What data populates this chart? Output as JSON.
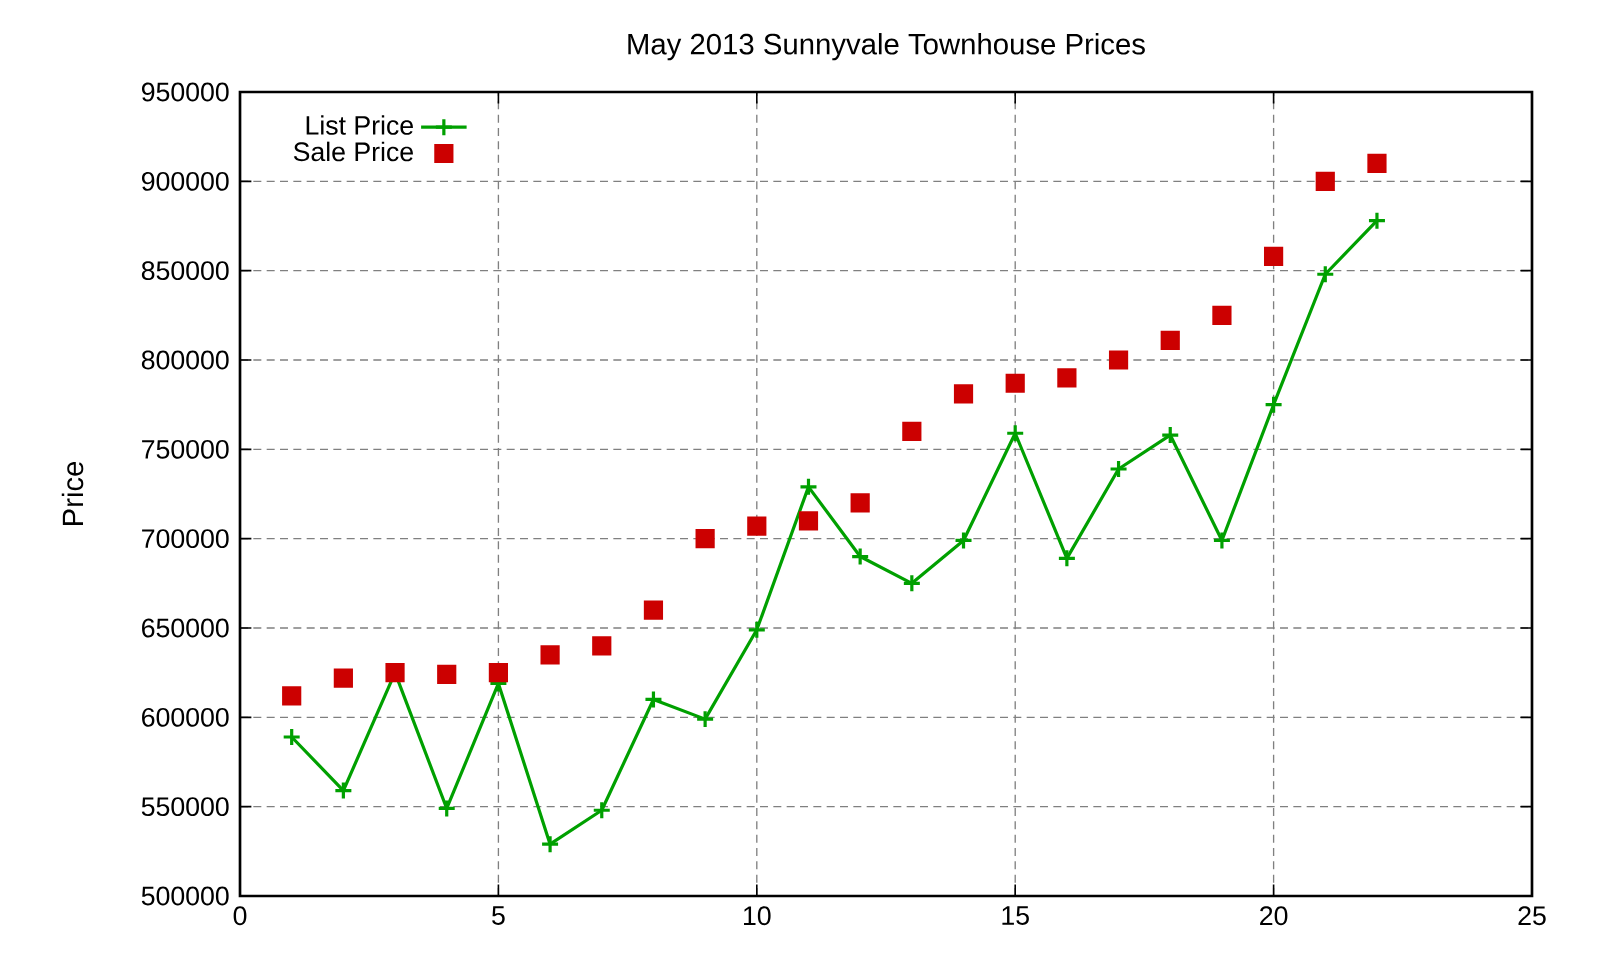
{
  "chart_data": {
    "type": "line",
    "title": "May 2013 Sunnyvale Townhouse Prices",
    "ylabel": "Price",
    "x": [
      1,
      2,
      3,
      4,
      5,
      6,
      7,
      8,
      9,
      10,
      11,
      12,
      13,
      14,
      15,
      16,
      17,
      18,
      19,
      20,
      21,
      22
    ],
    "series": [
      {
        "name": "List Price",
        "color": "#00a000",
        "marker": "cross",
        "values": [
          589000,
          559000,
          625000,
          549000,
          619000,
          529000,
          548000,
          610000,
          599000,
          649000,
          729000,
          690000,
          675000,
          699000,
          759000,
          689000,
          739000,
          758000,
          699000,
          775000,
          848000,
          878000
        ]
      },
      {
        "name": "Sale Price",
        "type": "scatter",
        "color": "#cc0000",
        "marker": "square",
        "values": [
          612000,
          622000,
          625000,
          624000,
          625000,
          635000,
          640000,
          660000,
          700000,
          707000,
          710000,
          720000,
          760000,
          781000,
          787000,
          790000,
          800000,
          811000,
          825000,
          858000,
          900000,
          910000
        ]
      }
    ],
    "xlim": [
      0,
      25
    ],
    "xticks": [
      0,
      5,
      10,
      15,
      20,
      25
    ],
    "ylim": [
      500000,
      950000
    ],
    "yticks": [
      500000,
      550000,
      600000,
      650000,
      700000,
      750000,
      800000,
      850000,
      900000,
      950000
    ],
    "grid": true,
    "legend": "top left"
  }
}
